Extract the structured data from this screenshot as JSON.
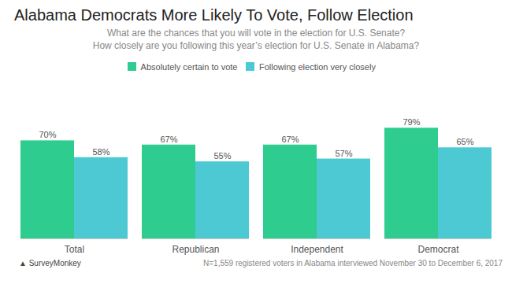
{
  "chart_data": {
    "type": "bar",
    "title": "Alabama Democrats More Likely To Vote, Follow Election",
    "subtitle": [
      "What are the chances that you will vote in the election for U.S. Senate?",
      "How closely are you following this year’s election for U.S. Senate in Alabama?"
    ],
    "footnote": "N=1,559 registered voters in Alabama interviewed November 30 to December 6, 2017",
    "annotations": [
      "▲ SurveyMonkey"
    ],
    "categories": [
      "Total",
      "Republican",
      "Independent",
      "Democrat"
    ],
    "series": [
      {
        "name": "Absolutely certain to vote",
        "color": "#2ecc8e",
        "values": [
          70,
          67,
          67,
          79
        ],
        "value_labels": [
          "70%",
          "67%",
          "67%",
          "79%"
        ]
      },
      {
        "name": "Following election very closely",
        "color": "#4dc9d4",
        "values": [
          58,
          55,
          57,
          65
        ],
        "value_labels": [
          "58%",
          "55%",
          "57%",
          "65%"
        ]
      }
    ],
    "ylim": [
      0,
      100
    ],
    "grid": false,
    "data_labels": true,
    "tick_labels": "x"
  }
}
